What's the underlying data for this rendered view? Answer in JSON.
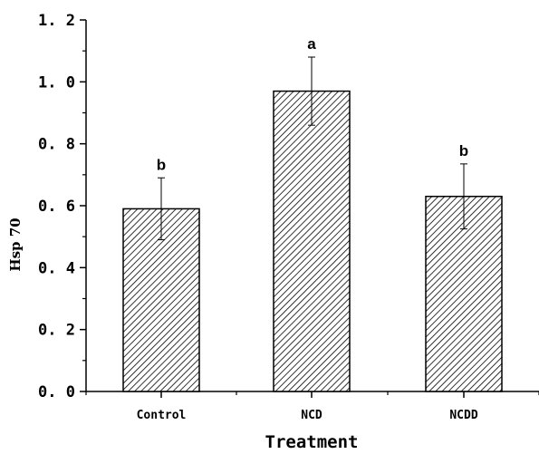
{
  "chart_data": {
    "type": "bar",
    "categories": [
      "Control",
      "NCD",
      "NCDD"
    ],
    "values": [
      0.59,
      0.97,
      0.63
    ],
    "errors": [
      0.1,
      0.11,
      0.105
    ],
    "significance": [
      "b",
      "a",
      "b"
    ],
    "xlabel": "Treatment",
    "ylabel": "Hsp 70",
    "ylim": [
      0.0,
      1.2
    ],
    "yticks": [
      "0. 0",
      "0. 2",
      "0. 4",
      "0. 6",
      "0. 8",
      "1. 0",
      "1. 2"
    ],
    "ytick_values": [
      0.0,
      0.2,
      0.4,
      0.6,
      0.8,
      1.0,
      1.2
    ],
    "bar_fill": "hatched",
    "grid": false
  }
}
